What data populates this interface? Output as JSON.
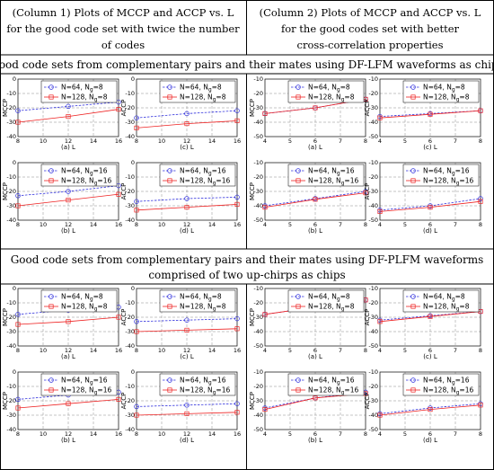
{
  "header": {
    "col1": [
      "(Column 1) Plots of MCCP and ACCP vs. L",
      "for the good code set with twice the number",
      "of codes"
    ],
    "col2": [
      "(Column 2) Plots of MCCP and ACCP vs. L",
      "for the good codes set with better",
      "cross-correlation properties"
    ]
  },
  "sections": [
    {
      "title": [
        "Good code sets from complementary pairs and their mates using DF-LFM waveforms as chips"
      ]
    },
    {
      "title": [
        "Good code sets from complementary pairs and their mates using DF-PLFM waveforms",
        "comprised of two up-chirps as chips"
      ]
    }
  ],
  "colors": {
    "series1": "#3333dd",
    "series2": "#ee2222",
    "grid": "#8a8a8a",
    "border": "#000000"
  },
  "chart_data": [
    {
      "type": "line",
      "section": 0,
      "column": 1,
      "row": 0,
      "panel": 0,
      "ylabel": "MCCP",
      "xlabel": "(a) L",
      "x": [
        8,
        12,
        16
      ],
      "ylim": [
        -40,
        0
      ],
      "yticks": [
        -40,
        -30,
        -20,
        -10,
        0
      ],
      "xticks": [
        8,
        10,
        12,
        14,
        16
      ],
      "series": [
        {
          "name": "N=64, N_g=8",
          "values": [
            -22,
            -19,
            -16
          ]
        },
        {
          "name": "N=128, N_g=8",
          "values": [
            -30,
            -26,
            -21
          ]
        }
      ]
    },
    {
      "type": "line",
      "section": 0,
      "column": 1,
      "row": 0,
      "panel": 1,
      "ylabel": "ACCP",
      "xlabel": "(c) L",
      "x": [
        8,
        12,
        16
      ],
      "ylim": [
        -40,
        0
      ],
      "yticks": [
        -40,
        -30,
        -20,
        -10,
        0
      ],
      "xticks": [
        8,
        10,
        12,
        14,
        16
      ],
      "series": [
        {
          "name": "N=64, N_g=8",
          "values": [
            -27,
            -24,
            -22
          ]
        },
        {
          "name": "N=128, N_g=8",
          "values": [
            -34,
            -31,
            -29
          ]
        }
      ]
    },
    {
      "type": "line",
      "section": 0,
      "column": 1,
      "row": 1,
      "panel": 0,
      "ylabel": "MCCP",
      "xlabel": "(b) L",
      "x": [
        8,
        12,
        16
      ],
      "ylim": [
        -40,
        0
      ],
      "yticks": [
        -40,
        -30,
        -20,
        -10,
        0
      ],
      "xticks": [
        8,
        10,
        12,
        14,
        16
      ],
      "series": [
        {
          "name": "N=64, N_g=16",
          "values": [
            -23,
            -20,
            -16
          ]
        },
        {
          "name": "N=128, N_g=16",
          "values": [
            -30,
            -26,
            -22
          ]
        }
      ]
    },
    {
      "type": "line",
      "section": 0,
      "column": 1,
      "row": 1,
      "panel": 1,
      "ylabel": "ACCP",
      "xlabel": "(d) L",
      "x": [
        8,
        12,
        16
      ],
      "ylim": [
        -40,
        0
      ],
      "yticks": [
        -40,
        -30,
        -20,
        -10,
        0
      ],
      "xticks": [
        8,
        10,
        12,
        14,
        16
      ],
      "series": [
        {
          "name": "N=64, N_g=16",
          "values": [
            -27,
            -25,
            -24
          ]
        },
        {
          "name": "N=128, N_g=16",
          "values": [
            -33,
            -31,
            -29
          ]
        }
      ]
    },
    {
      "type": "line",
      "section": 0,
      "column": 2,
      "row": 0,
      "panel": 0,
      "ylabel": "MCCP",
      "xlabel": "(a) L",
      "x": [
        4,
        6,
        8
      ],
      "ylim": [
        -50,
        -10
      ],
      "yticks": [
        -50,
        -40,
        -30,
        -20,
        -10
      ],
      "xticks": [
        4,
        5,
        6,
        7,
        8
      ],
      "series": [
        {
          "name": "N=64, N_g=8",
          "values": [
            -34,
            -30,
            -24
          ]
        },
        {
          "name": "N=128, N_g=8",
          "values": [
            -34,
            -30,
            -24
          ]
        }
      ]
    },
    {
      "type": "line",
      "section": 0,
      "column": 2,
      "row": 0,
      "panel": 1,
      "ylabel": "ACCP",
      "xlabel": "(c) L",
      "x": [
        4,
        6,
        8
      ],
      "ylim": [
        -50,
        -10
      ],
      "yticks": [
        -50,
        -40,
        -30,
        -20,
        -10
      ],
      "xticks": [
        4,
        5,
        6,
        7,
        8
      ],
      "series": [
        {
          "name": "N=64, N_g=8",
          "values": [
            -36,
            -34,
            -32
          ]
        },
        {
          "name": "N=128, N_g=8",
          "values": [
            -37,
            -34.5,
            -32
          ]
        }
      ]
    },
    {
      "type": "line",
      "section": 0,
      "column": 2,
      "row": 1,
      "panel": 0,
      "ylabel": "MCCP",
      "xlabel": "(b) L",
      "x": [
        4,
        6,
        8
      ],
      "ylim": [
        -50,
        -10
      ],
      "yticks": [
        -50,
        -40,
        -30,
        -20,
        -10
      ],
      "xticks": [
        4,
        5,
        6,
        7,
        8
      ],
      "series": [
        {
          "name": "N=64, N_g=16",
          "values": [
            -40,
            -35,
            -30
          ]
        },
        {
          "name": "N=128, N_g=16",
          "values": [
            -41,
            -35.5,
            -31
          ]
        }
      ]
    },
    {
      "type": "line",
      "section": 0,
      "column": 2,
      "row": 1,
      "panel": 1,
      "ylabel": "ACCP",
      "xlabel": "(d) L",
      "x": [
        4,
        6,
        8
      ],
      "ylim": [
        -50,
        -10
      ],
      "yticks": [
        -50,
        -40,
        -30,
        -20,
        -10
      ],
      "xticks": [
        4,
        5,
        6,
        7,
        8
      ],
      "series": [
        {
          "name": "N=64, N_g=16",
          "values": [
            -43,
            -40,
            -35
          ]
        },
        {
          "name": "N=128, N_g=16",
          "values": [
            -44,
            -41,
            -37
          ]
        }
      ]
    },
    {
      "type": "line",
      "section": 1,
      "column": 1,
      "row": 0,
      "panel": 0,
      "ylabel": "MCCP",
      "xlabel": "(a) L",
      "x": [
        8,
        12,
        16
      ],
      "ylim": [
        -40,
        0
      ],
      "yticks": [
        -40,
        -30,
        -20,
        -10,
        0
      ],
      "xticks": [
        8,
        10,
        12,
        14,
        16
      ],
      "series": [
        {
          "name": "N=64, N_g=8",
          "values": [
            -18,
            -15,
            -13
          ]
        },
        {
          "name": "N=128, N_g=8",
          "values": [
            -25,
            -23,
            -20
          ]
        }
      ]
    },
    {
      "type": "line",
      "section": 1,
      "column": 1,
      "row": 0,
      "panel": 1,
      "ylabel": "ACCP",
      "xlabel": "(c) L",
      "x": [
        8,
        12,
        16
      ],
      "ylim": [
        -40,
        0
      ],
      "yticks": [
        -40,
        -30,
        -20,
        -10,
        0
      ],
      "xticks": [
        8,
        10,
        12,
        14,
        16
      ],
      "series": [
        {
          "name": "N=64, N_g=8",
          "values": [
            -23,
            -22,
            -21
          ]
        },
        {
          "name": "N=128, N_g=8",
          "values": [
            -30,
            -29,
            -28
          ]
        }
      ]
    },
    {
      "type": "line",
      "section": 1,
      "column": 1,
      "row": 1,
      "panel": 0,
      "ylabel": "MCCP",
      "xlabel": "(b) L",
      "x": [
        8,
        12,
        16
      ],
      "ylim": [
        -40,
        0
      ],
      "yticks": [
        -40,
        -30,
        -20,
        -10,
        0
      ],
      "xticks": [
        8,
        10,
        12,
        14,
        16
      ],
      "series": [
        {
          "name": "N=64, N_g=16",
          "values": [
            -19,
            -16,
            -14
          ]
        },
        {
          "name": "N=128, N_g=16",
          "values": [
            -25,
            -22,
            -19
          ]
        }
      ]
    },
    {
      "type": "line",
      "section": 1,
      "column": 1,
      "row": 1,
      "panel": 1,
      "ylabel": "ACCP",
      "xlabel": "(d) L",
      "x": [
        8,
        12,
        16
      ],
      "ylim": [
        -40,
        0
      ],
      "yticks": [
        -40,
        -30,
        -20,
        -10,
        0
      ],
      "xticks": [
        8,
        10,
        12,
        14,
        16
      ],
      "series": [
        {
          "name": "N=64, N_g=16",
          "values": [
            -24,
            -23,
            -22
          ]
        },
        {
          "name": "N=128, N_g=16",
          "values": [
            -30,
            -29,
            -28
          ]
        }
      ]
    },
    {
      "type": "line",
      "section": 1,
      "column": 2,
      "row": 0,
      "panel": 0,
      "ylabel": "MCCP",
      "xlabel": "(a) L",
      "x": [
        4,
        6,
        8
      ],
      "ylim": [
        -50,
        -10
      ],
      "yticks": [
        -50,
        -40,
        -30,
        -20,
        -10
      ],
      "xticks": [
        4,
        5,
        6,
        7,
        8
      ],
      "series": [
        {
          "name": "N=64, N_g=8",
          "values": [
            -28,
            -23,
            -18
          ]
        },
        {
          "name": "N=128, N_g=8",
          "values": [
            -28,
            -23,
            -18
          ]
        }
      ]
    },
    {
      "type": "line",
      "section": 1,
      "column": 2,
      "row": 0,
      "panel": 1,
      "ylabel": "ACCP",
      "xlabel": "(c) L",
      "x": [
        4,
        6,
        8
      ],
      "ylim": [
        -50,
        -10
      ],
      "yticks": [
        -50,
        -40,
        -30,
        -20,
        -10
      ],
      "xticks": [
        4,
        5,
        6,
        7,
        8
      ],
      "series": [
        {
          "name": "N=64, N_g=8",
          "values": [
            -32,
            -29,
            -26
          ]
        },
        {
          "name": "N=128, N_g=8",
          "values": [
            -33,
            -29.5,
            -26
          ]
        }
      ]
    },
    {
      "type": "line",
      "section": 1,
      "column": 2,
      "row": 1,
      "panel": 0,
      "ylabel": "MCCP",
      "xlabel": "(b) L",
      "x": [
        4,
        6,
        8
      ],
      "ylim": [
        -50,
        -10
      ],
      "yticks": [
        -50,
        -40,
        -30,
        -20,
        -10
      ],
      "xticks": [
        4,
        5,
        6,
        7,
        8
      ],
      "series": [
        {
          "name": "N=64, N_g=16",
          "values": [
            -35,
            -28,
            -24
          ]
        },
        {
          "name": "N=128, N_g=16",
          "values": [
            -36,
            -28,
            -25
          ]
        }
      ]
    },
    {
      "type": "line",
      "section": 1,
      "column": 2,
      "row": 1,
      "panel": 1,
      "ylabel": "ACCP",
      "xlabel": "(d) L",
      "x": [
        4,
        6,
        8
      ],
      "ylim": [
        -50,
        -10
      ],
      "yticks": [
        -50,
        -40,
        -30,
        -20,
        -10
      ],
      "xticks": [
        4,
        5,
        6,
        7,
        8
      ],
      "series": [
        {
          "name": "N=64, N_g=16",
          "values": [
            -39,
            -35,
            -32
          ]
        },
        {
          "name": "N=128, N_g=16",
          "values": [
            -40,
            -36,
            -33
          ]
        }
      ]
    }
  ]
}
